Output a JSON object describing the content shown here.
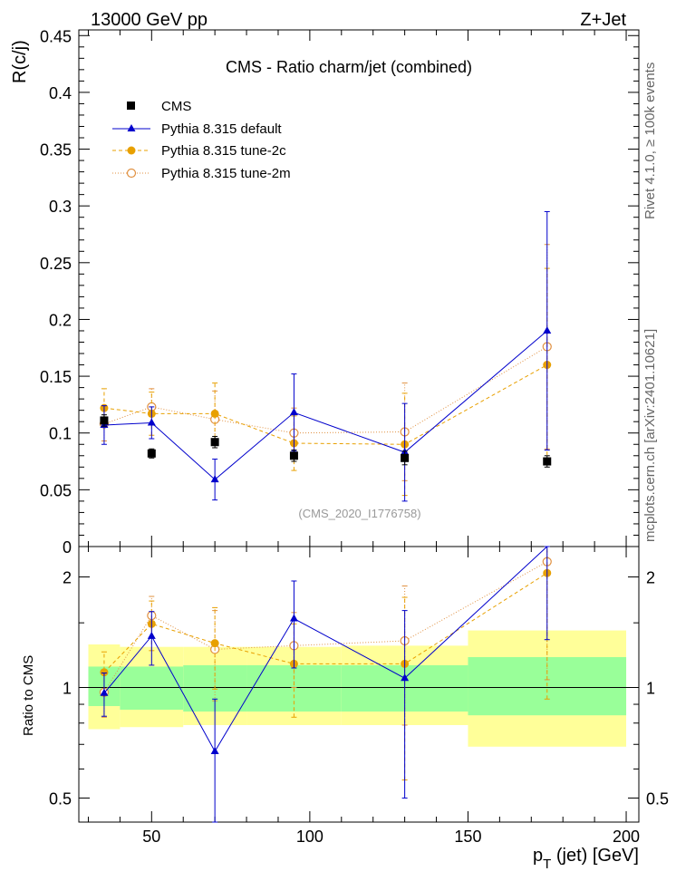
{
  "header": {
    "left_label": "13000 GeV pp",
    "right_label": "Z+Jet"
  },
  "side_labels": {
    "rivet": "Rivet 4.1.0, ≥ 100k events",
    "mcplots": "mcplots.cern.ch [arXiv:2401.10621]"
  },
  "chart_data": {
    "type": "line",
    "title": "CMS - Ratio charm/jet (combined)",
    "analysis_id": "(CMS_2020_I1776758)",
    "xlabel": "p_T (jet) [GeV]",
    "xlabel_main": "p",
    "xlabel_sub": "T",
    "xlabel_rest": " (jet) [GeV]",
    "ylabel": "R(c/j)",
    "ratio_ylabel": "Ratio to CMS",
    "xlim": [
      27,
      204
    ],
    "ylim": [
      0,
      0.455
    ],
    "x_ticks": [
      "50",
      "100",
      "150",
      "200"
    ],
    "y_ticks": [
      "0",
      "0.05",
      "0.1",
      "0.15",
      "0.2",
      "0.25",
      "0.3",
      "0.35",
      "0.4",
      "0.45"
    ],
    "ratio_ylim": [
      0.43,
      2.42
    ],
    "ratio_ticks": [
      "0.5",
      "1",
      "2"
    ],
    "bins": [
      [
        30,
        40
      ],
      [
        40,
        60
      ],
      [
        60,
        80
      ],
      [
        80,
        110
      ],
      [
        110,
        150
      ],
      [
        150,
        200
      ]
    ],
    "x": [
      35,
      50,
      70,
      95,
      130,
      175
    ],
    "series": [
      {
        "name": "CMS",
        "color": "#000000",
        "values": [
          0.111,
          0.082,
          0.092,
          0.08,
          0.078,
          0.075
        ],
        "errors": [
          0.005,
          0.004,
          0.005,
          0.005,
          0.006,
          0.005
        ]
      },
      {
        "name": "Pythia 8.315 default",
        "color": "#0000cc",
        "values": [
          0.107,
          0.109,
          0.059,
          0.118,
          0.083,
          0.19
        ],
        "errors": [
          0.017,
          0.014,
          0.018,
          0.034,
          0.043,
          0.105
        ]
      },
      {
        "name": "Pythia 8.315 tune-2c",
        "color": "#e8a000",
        "values": [
          0.122,
          0.117,
          0.117,
          0.091,
          0.09,
          0.16
        ],
        "errors": [
          0.017,
          0.019,
          0.027,
          0.024,
          0.045,
          0.085
        ]
      },
      {
        "name": "Pythia 8.315 tune-2m",
        "color": "#e09040",
        "values": [
          0.108,
          0.123,
          0.112,
          0.1,
          0.101,
          0.176
        ],
        "errors": [
          0.015,
          0.016,
          0.025,
          0.022,
          0.043,
          0.09
        ]
      }
    ],
    "ratio_band_inner": [
      [
        0.89,
        1.14
      ],
      [
        0.87,
        1.14
      ],
      [
        0.86,
        1.15
      ],
      [
        0.86,
        1.15
      ],
      [
        0.86,
        1.15
      ],
      [
        0.84,
        1.21
      ]
    ],
    "ratio_band_outer": [
      [
        0.77,
        1.31
      ],
      [
        0.78,
        1.29
      ],
      [
        0.79,
        1.29
      ],
      [
        0.79,
        1.29
      ],
      [
        0.79,
        1.3
      ],
      [
        0.69,
        1.43
      ]
    ],
    "ratio_values": {
      "Pythia 8.315 default": [
        0.965,
        1.38,
        0.67,
        1.54,
        1.06,
        2.55
      ],
      "Pythia 8.315 tune-2c": [
        1.1,
        1.49,
        1.32,
        1.16,
        1.16,
        2.05
      ],
      "Pythia 8.315 tune-2m": [
        0.97,
        1.57,
        1.27,
        1.3,
        1.34,
        2.2
      ]
    },
    "ratio_errors": {
      "Pythia 8.315 default": [
        0.13,
        0.23,
        0.26,
        0.41,
        0.56,
        1.2
      ],
      "Pythia 8.315 tune-2c": [
        0.15,
        0.23,
        0.33,
        0.33,
        0.6,
        1.12
      ],
      "Pythia 8.315 tune-2m": [
        0.14,
        0.2,
        0.35,
        0.3,
        0.55,
        1.15
      ]
    }
  }
}
